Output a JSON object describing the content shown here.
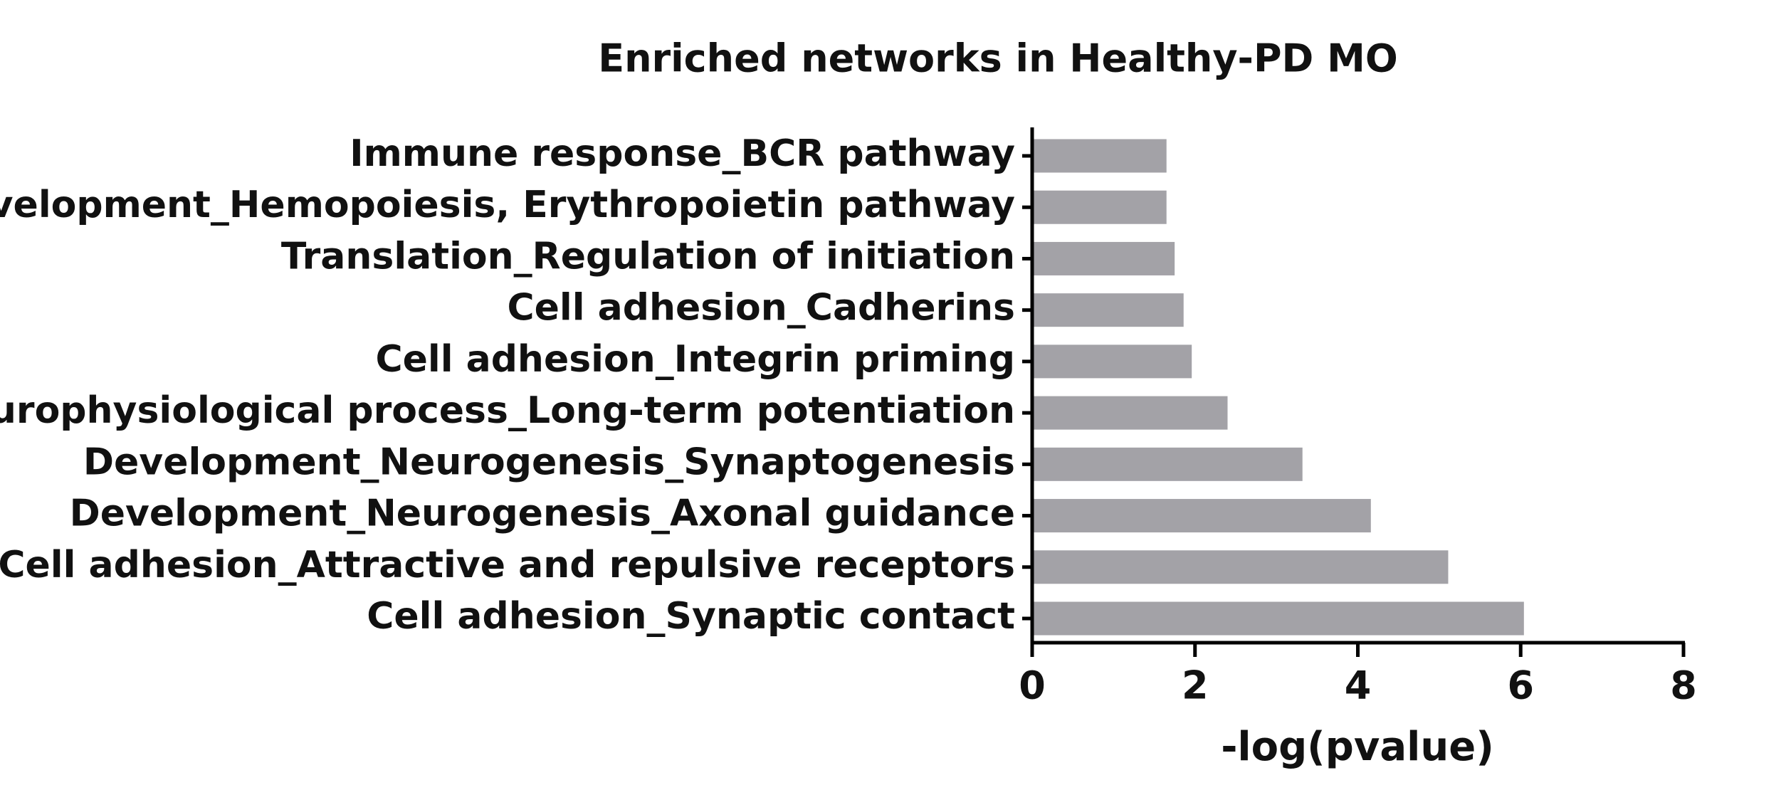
{
  "chart_data": {
    "type": "barh",
    "title": "Enriched networks in Healthy-PD MO",
    "xlabel": "-log(pvalue)",
    "categories": [
      "Immune response_BCR pathway",
      "Development_Hemopoiesis, Erythropoietin pathway",
      "Translation_Regulation of initiation",
      "Cell adhesion_Cadherins",
      "Cell adhesion_Integrin priming",
      "Neurophysiological process_Long-term potentiation",
      "Development_Neurogenesis_Synaptogenesis",
      "Development_Neurogenesis_Axonal guidance",
      "Cell adhesion_Attractive and repulsive receptors",
      "Cell adhesion_Synaptic contact"
    ],
    "values": [
      1.65,
      1.65,
      1.75,
      1.86,
      1.96,
      2.4,
      3.32,
      4.16,
      5.11,
      6.04
    ],
    "color": "#a3a2a7",
    "xlim": [
      0,
      8
    ],
    "xticks": [
      0,
      2,
      4,
      6,
      8
    ],
    "grid": false
  }
}
